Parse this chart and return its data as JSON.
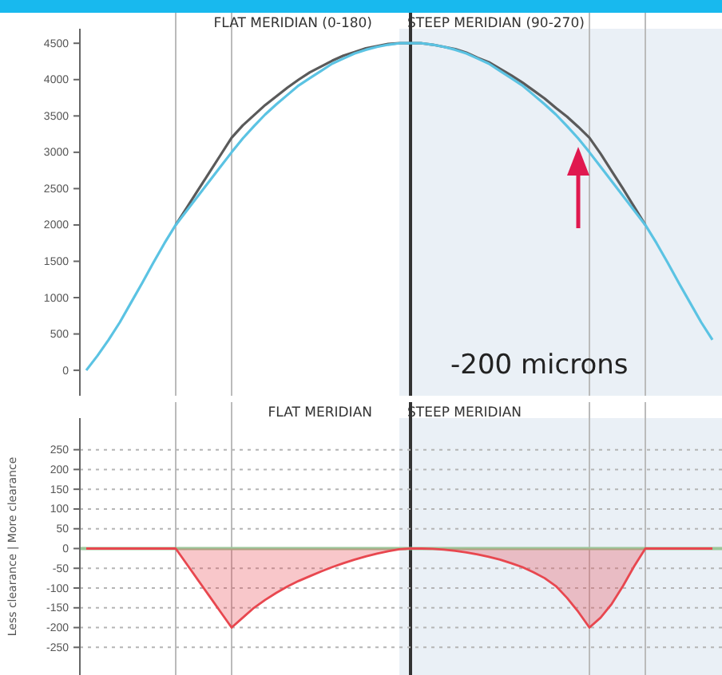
{
  "chart_data": [
    {
      "type": "line",
      "categories": [
        null,
        null,
        null,
        null,
        null,
        null,
        null,
        null,
        null,
        null,
        null,
        null,
        null,
        null,
        null,
        null,
        null,
        null,
        null,
        null,
        null,
        null,
        null,
        null,
        null,
        null,
        null,
        null,
        null,
        null,
        null,
        null,
        null,
        null,
        null,
        null,
        null,
        null,
        null,
        null,
        null,
        null,
        null,
        null,
        null,
        null,
        null,
        null,
        null,
        null,
        null,
        null,
        null,
        null,
        null,
        null,
        null
      ],
      "series": [
        {
          "color": "#5a5a5a",
          "values": [
            null,
            null,
            null,
            null,
            null,
            null,
            null,
            null,
            2000,
            2240,
            2480,
            2720,
            2960,
            3200,
            3370,
            3510,
            3650,
            3770,
            3890,
            4000,
            4100,
            4180,
            4260,
            4330,
            4380,
            4430,
            4460,
            4490,
            4500,
            4500,
            4500,
            4480,
            4450,
            4420,
            4370,
            4300,
            4240,
            4150,
            4060,
            3960,
            3850,
            3740,
            3610,
            3490,
            3350,
            3200,
            2980,
            2740,
            2500,
            2250,
            2000,
            null,
            null,
            null,
            null,
            null,
            null
          ]
        },
        {
          "color": "#5bc3e3",
          "values": [
            0,
            200,
            420,
            660,
            930,
            1200,
            1480,
            1750,
            2000,
            2200,
            2400,
            2600,
            2800,
            3000,
            3190,
            3360,
            3520,
            3660,
            3790,
            3920,
            4020,
            4120,
            4220,
            4290,
            4360,
            4410,
            4450,
            4480,
            4500,
            4500,
            4500,
            4480,
            4450,
            4410,
            4360,
            4290,
            4220,
            4120,
            4020,
            3920,
            3790,
            3660,
            3520,
            3360,
            3190,
            3000,
            2800,
            2600,
            2400,
            2200,
            2000,
            1750,
            1480,
            1200,
            930,
            660,
            420
          ]
        }
      ],
      "ylim": [
        -350,
        4700
      ],
      "yticks": [
        0,
        500,
        1000,
        1500,
        2000,
        2500,
        3000,
        3500,
        4000,
        4500
      ],
      "grid": "x",
      "annotations": [
        "FLAT MERIDIAN (0-180)",
        "STEEP MERIDIAN (90-270)",
        "-200 microns"
      ]
    },
    {
      "type": "area",
      "categories": [
        null,
        null,
        null,
        null,
        null,
        null,
        null,
        null,
        null,
        null,
        null,
        null,
        null,
        null,
        null,
        null,
        null,
        null,
        null,
        null,
        null,
        null,
        null,
        null,
        null,
        null,
        null,
        null,
        null,
        null,
        null,
        null,
        null,
        null,
        null,
        null,
        null,
        null,
        null,
        null,
        null,
        null,
        null,
        null,
        null,
        null,
        null,
        null,
        null,
        null,
        null,
        null,
        null,
        null,
        null,
        null,
        null
      ],
      "series": [
        {
          "color": "#e8474f",
          "values": [
            0,
            0,
            0,
            0,
            0,
            0,
            0,
            0,
            0,
            -40,
            -80,
            -120,
            -160,
            -200,
            -175,
            -150,
            -130,
            -112,
            -96,
            -82,
            -70,
            -58,
            -47,
            -37,
            -28,
            -20,
            -13,
            -7,
            -2,
            0,
            0,
            -1,
            -3,
            -6,
            -10,
            -15,
            -21,
            -28,
            -37,
            -47,
            -60,
            -75,
            -95,
            -125,
            -160,
            -200,
            -175,
            -140,
            -95,
            -45,
            0,
            0,
            0,
            0,
            0,
            0,
            0
          ]
        }
      ],
      "ylim": [
        -320,
        330
      ],
      "yticks": [
        -250,
        -200,
        -150,
        -100,
        -50,
        0,
        50,
        100,
        150,
        200,
        250
      ],
      "grid": true,
      "ylabel": "Less clearance | More clearance",
      "ref_lines": [
        {
          "axis": "y",
          "value": 0,
          "color": "#9cc79a"
        }
      ],
      "annotations": [
        "FLAT MERIDIAN",
        "STEEP MERIDIAN"
      ]
    }
  ]
}
